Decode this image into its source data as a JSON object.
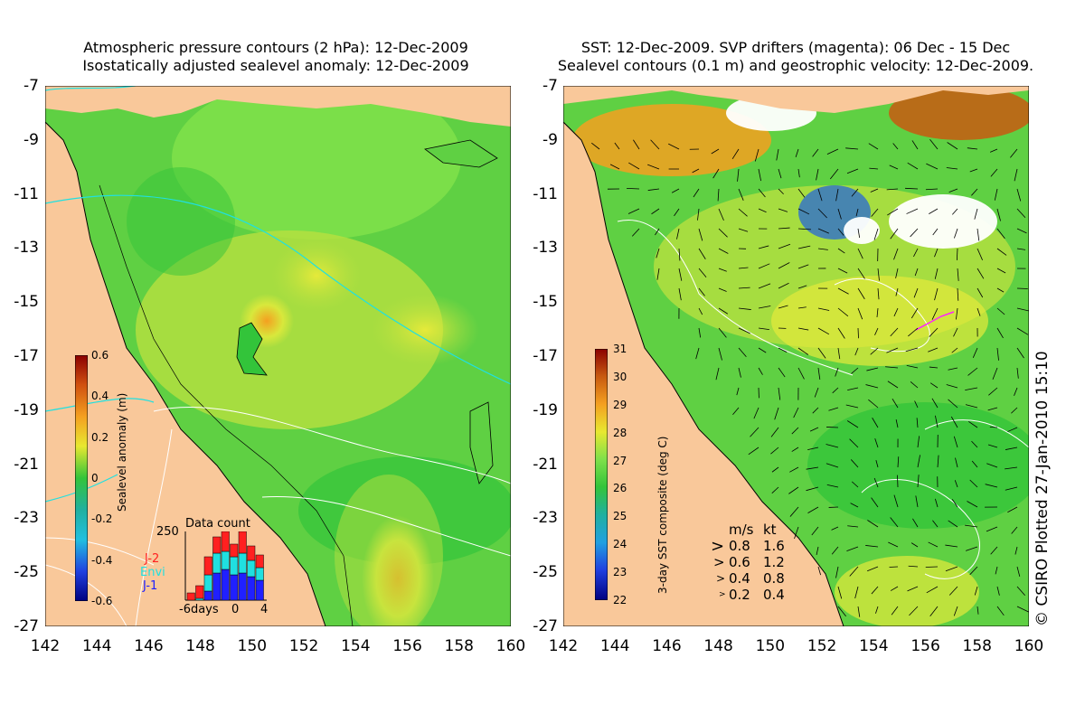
{
  "left_panel": {
    "title_line1": "Atmospheric pressure contours (2 hPa): 12-Dec-2009",
    "title_line2": "Isostatically adjusted sealevel anomaly: 12-Dec-2009",
    "colorbar_title": "Sealevel anomaly (m)",
    "colorbar_ticks": [
      "0.6",
      "0.4",
      "0.2",
      "0",
      "-0.2",
      "-0.4",
      "-0.6"
    ],
    "data_count": {
      "title": "Data count",
      "ymax_label": "250",
      "series": [
        {
          "name": "J-2",
          "color": "#ff2020"
        },
        {
          "name": "Envi",
          "color": "#20e0e0"
        },
        {
          "name": "J-1",
          "color": "#2020ff"
        }
      ],
      "x_labels": [
        "-6days",
        "0",
        "4"
      ]
    }
  },
  "right_panel": {
    "title_line1": "SST: 12-Dec-2009. SVP drifters (magenta): 06 Dec - 15 Dec",
    "title_line2": "Sealevel contours (0.1 m) and geostrophic velocity: 12-Dec-2009.",
    "colorbar_title": "3-day SST composite (deg C)",
    "colorbar_ticks": [
      "31",
      "30",
      "29",
      "28",
      "27",
      "26",
      "25",
      "24",
      "23",
      "22"
    ],
    "velocity_legend": {
      "header_ms": "m/s",
      "header_kt": "kt",
      "rows": [
        {
          "ms": "0.8",
          "kt": "1.6"
        },
        {
          "ms": "0.6",
          "kt": "1.2"
        },
        {
          "ms": "0.4",
          "kt": "0.8"
        },
        {
          "ms": "0.2",
          "kt": "0.4"
        }
      ]
    }
  },
  "axes": {
    "lat_ticks": [
      "-7",
      "-9",
      "-11",
      "-13",
      "-15",
      "-17",
      "-19",
      "-21",
      "-23",
      "-25",
      "-27"
    ],
    "lon_ticks": [
      "142",
      "144",
      "146",
      "148",
      "150",
      "152",
      "154",
      "156",
      "158",
      "160"
    ]
  },
  "credit": "© CSIRO Plotted 27-Jan-2010 15:10",
  "colors": {
    "land": "#f9c89a",
    "ocean_green": "#33c43a",
    "ocean_lightgreen": "#7ee04a",
    "ocean_yellow": "#d8e83c",
    "ocean_orange": "#f4a020",
    "ocean_red": "#c85a10",
    "cloud_white": "#ffffff"
  }
}
